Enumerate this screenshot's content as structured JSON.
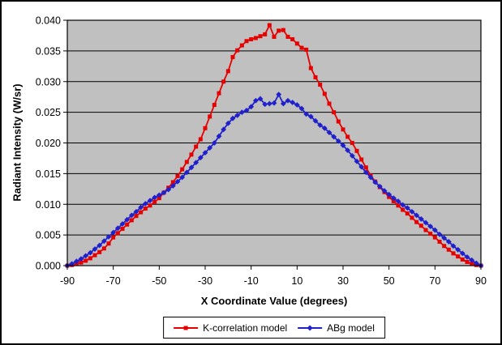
{
  "chart_data": {
    "type": "line",
    "title": "",
    "xlabel": "X Coordinate Value (degrees)",
    "ylabel": "Radiant Intensity (W/sr)",
    "xlim": [
      -90,
      90
    ],
    "ylim": [
      0,
      0.04
    ],
    "grid": "horizontal-only",
    "plot_bg_color": "#c0c0c0",
    "gridline_color": "#000000",
    "axis_color": "#000000",
    "legend_position": "bottom-center",
    "x_tick_values": [
      -90,
      -70,
      -50,
      -30,
      -10,
      10,
      30,
      50,
      70,
      90
    ],
    "x_tick_labels": [
      "-90",
      "-70",
      "-50",
      "-30",
      "-10",
      "10",
      "30",
      "50",
      "70",
      "90"
    ],
    "y_tick_values": [
      0,
      0.005,
      0.01,
      0.015,
      0.02,
      0.025,
      0.03,
      0.035,
      0.04
    ],
    "y_tick_labels": [
      "0.000",
      "0.005",
      "0.010",
      "0.015",
      "0.020",
      "0.025",
      "0.030",
      "0.035",
      "0.040"
    ],
    "x": [
      -90,
      -88,
      -86,
      -84,
      -82,
      -80,
      -78,
      -76,
      -74,
      -72,
      -70,
      -68,
      -66,
      -64,
      -62,
      -60,
      -58,
      -56,
      -54,
      -52,
      -50,
      -48,
      -46,
      -44,
      -42,
      -40,
      -38,
      -36,
      -34,
      -32,
      -30,
      -28,
      -26,
      -24,
      -22,
      -20,
      -18,
      -16,
      -14,
      -12,
      -10,
      -8,
      -6,
      -4,
      -2,
      0,
      2,
      4,
      6,
      8,
      10,
      12,
      14,
      16,
      18,
      20,
      22,
      24,
      26,
      28,
      30,
      32,
      34,
      36,
      38,
      40,
      42,
      44,
      46,
      48,
      50,
      52,
      54,
      56,
      58,
      60,
      62,
      64,
      66,
      68,
      70,
      72,
      74,
      76,
      78,
      80,
      82,
      84,
      86,
      88,
      90
    ],
    "series": [
      {
        "name": "K-correlation model",
        "color": "#e60000",
        "marker": "square",
        "values": [
          0.0,
          0.0001,
          0.0003,
          0.0005,
          0.0008,
          0.0012,
          0.0017,
          0.0022,
          0.0028,
          0.0036,
          0.0046,
          0.0053,
          0.006,
          0.0067,
          0.0074,
          0.0081,
          0.0087,
          0.0093,
          0.0098,
          0.0104,
          0.011,
          0.0119,
          0.0127,
          0.0136,
          0.0146,
          0.0157,
          0.0169,
          0.0181,
          0.0194,
          0.0206,
          0.0224,
          0.0243,
          0.0262,
          0.0281,
          0.03,
          0.0317,
          0.034,
          0.0351,
          0.0359,
          0.0366,
          0.0369,
          0.0371,
          0.0374,
          0.0377,
          0.0392,
          0.0373,
          0.0383,
          0.0384,
          0.0373,
          0.0369,
          0.0362,
          0.0355,
          0.0352,
          0.0322,
          0.0307,
          0.0295,
          0.028,
          0.0264,
          0.025,
          0.0235,
          0.0222,
          0.021,
          0.02,
          0.0187,
          0.0173,
          0.016,
          0.0147,
          0.0137,
          0.0128,
          0.012,
          0.0112,
          0.0105,
          0.0098,
          0.0091,
          0.0085,
          0.0078,
          0.0071,
          0.0065,
          0.0058,
          0.0052,
          0.0046,
          0.0039,
          0.0032,
          0.0026,
          0.002,
          0.0015,
          0.001,
          0.0006,
          0.0003,
          0.0001,
          0.0
        ]
      },
      {
        "name": "ABg model",
        "color": "#2020cc",
        "marker": "diamond",
        "values": [
          0.0,
          0.0003,
          0.0007,
          0.0011,
          0.0016,
          0.0021,
          0.0027,
          0.0033,
          0.004,
          0.0047,
          0.0054,
          0.0061,
          0.0068,
          0.0075,
          0.0082,
          0.0088,
          0.0095,
          0.0101,
          0.0106,
          0.0111,
          0.0115,
          0.0119,
          0.0124,
          0.013,
          0.0137,
          0.0144,
          0.0152,
          0.016,
          0.0168,
          0.0176,
          0.0184,
          0.0192,
          0.02,
          0.0211,
          0.0222,
          0.0232,
          0.024,
          0.0245,
          0.025,
          0.0253,
          0.0259,
          0.0269,
          0.0272,
          0.0263,
          0.0264,
          0.0265,
          0.0279,
          0.0264,
          0.0269,
          0.0266,
          0.0262,
          0.0256,
          0.0247,
          0.0243,
          0.0236,
          0.0229,
          0.0224,
          0.0217,
          0.021,
          0.0203,
          0.0196,
          0.0188,
          0.0179,
          0.017,
          0.0161,
          0.0152,
          0.0144,
          0.0136,
          0.0129,
          0.0122,
          0.0116,
          0.011,
          0.0105,
          0.0099,
          0.0094,
          0.0088,
          0.0082,
          0.0076,
          0.007,
          0.0064,
          0.0058,
          0.0051,
          0.0045,
          0.0039,
          0.0032,
          0.0026,
          0.002,
          0.0014,
          0.0009,
          0.0004,
          0.0
        ]
      }
    ]
  }
}
